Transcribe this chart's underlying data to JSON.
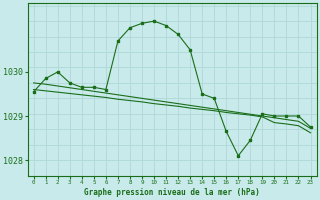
{
  "title": "Graphe pression niveau de la mer (hPa)",
  "bg_color": "#c8eaea",
  "grid_color": "#b0d8d8",
  "line_color": "#1a6e1a",
  "xlim": [
    -0.5,
    23.5
  ],
  "ylim": [
    1027.65,
    1031.55
  ],
  "yticks": [
    1028,
    1029,
    1030
  ],
  "xticks": [
    0,
    1,
    2,
    3,
    4,
    5,
    6,
    7,
    8,
    9,
    10,
    11,
    12,
    13,
    14,
    15,
    16,
    17,
    18,
    19,
    20,
    21,
    22,
    23
  ],
  "series1_x": [
    0,
    1,
    2,
    3,
    4,
    5,
    6,
    7,
    8,
    9,
    10,
    11,
    12,
    13,
    14,
    15,
    16,
    17,
    18,
    19,
    20,
    21,
    22,
    23
  ],
  "series1_y": [
    1029.55,
    1029.85,
    1030.0,
    1029.75,
    1029.65,
    1029.65,
    1029.6,
    1030.7,
    1031.0,
    1031.1,
    1031.15,
    1031.05,
    1030.85,
    1030.5,
    1029.5,
    1029.4,
    1028.65,
    1028.1,
    1028.45,
    1029.05,
    1029.0,
    1029.0,
    1029.0,
    1028.75
  ],
  "series2_x": [
    0,
    1,
    2,
    3,
    4,
    5,
    6,
    7,
    8,
    9,
    10,
    11,
    12,
    13,
    14,
    15,
    16,
    17,
    18,
    19,
    20,
    21,
    22,
    23
  ],
  "series2_y": [
    1029.75,
    1029.72,
    1029.68,
    1029.64,
    1029.6,
    1029.56,
    1029.52,
    1029.48,
    1029.44,
    1029.4,
    1029.36,
    1029.32,
    1029.28,
    1029.24,
    1029.2,
    1029.16,
    1029.12,
    1029.08,
    1029.04,
    1029.0,
    1028.96,
    1028.92,
    1028.88,
    1028.72
  ],
  "series3_x": [
    0,
    1,
    2,
    3,
    4,
    5,
    6,
    7,
    8,
    9,
    10,
    11,
    12,
    13,
    14,
    15,
    16,
    17,
    18,
    19,
    20,
    21,
    22,
    23
  ],
  "series3_y": [
    1029.6,
    1029.57,
    1029.54,
    1029.51,
    1029.48,
    1029.45,
    1029.42,
    1029.38,
    1029.35,
    1029.32,
    1029.28,
    1029.25,
    1029.22,
    1029.18,
    1029.15,
    1029.12,
    1029.08,
    1029.05,
    1029.02,
    1028.98,
    1028.85,
    1028.82,
    1028.78,
    1028.62
  ]
}
